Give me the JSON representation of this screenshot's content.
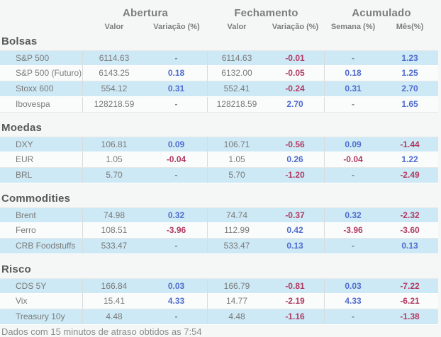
{
  "chart_data": {
    "type": "table",
    "column_groups": [
      {
        "label": "Abertura",
        "columns": [
          "Valor",
          "Variação (%)"
        ]
      },
      {
        "label": "Fechamento",
        "columns": [
          "Valor",
          "Variação (%)"
        ]
      },
      {
        "label": "Acumulado",
        "columns": [
          "Semana (%)",
          "Mês(%)"
        ]
      }
    ],
    "sections": [
      {
        "title": "Bolsas",
        "rows": [
          {
            "label": "S&P 500",
            "cells": [
              "6114.63",
              "-",
              "6114.63",
              "-0.01",
              "-",
              "1.23"
            ]
          },
          {
            "label": "S&P 500 (Futuro)",
            "cells": [
              "6143.25",
              "0.18",
              "6132.00",
              "-0.05",
              "0.18",
              "1.25"
            ]
          },
          {
            "label": "Stoxx 600",
            "cells": [
              "554.12",
              "0.31",
              "552.41",
              "-0.24",
              "0.31",
              "2.70"
            ]
          },
          {
            "label": "Ibovespa",
            "cells": [
              "128218.59",
              "-",
              "128218.59",
              "2.70",
              "-",
              "1.65"
            ]
          }
        ]
      },
      {
        "title": "Moedas",
        "rows": [
          {
            "label": "DXY",
            "cells": [
              "106.81",
              "0.09",
              "106.71",
              "-0.56",
              "0.09",
              "-1.44"
            ]
          },
          {
            "label": "EUR",
            "cells": [
              "1.05",
              "-0.04",
              "1.05",
              "0.26",
              "-0.04",
              "1.22"
            ]
          },
          {
            "label": "BRL",
            "cells": [
              "5.70",
              "-",
              "5.70",
              "-1.20",
              "-",
              "-2.49"
            ]
          }
        ]
      },
      {
        "title": "Commodities",
        "rows": [
          {
            "label": "Brent",
            "cells": [
              "74.98",
              "0.32",
              "74.74",
              "-0.37",
              "0.32",
              "-2.32"
            ]
          },
          {
            "label": "Ferro",
            "cells": [
              "108.51",
              "-3.96",
              "112.99",
              "0.42",
              "-3.96",
              "-3.60"
            ]
          },
          {
            "label": "CRB Foodstuffs",
            "cells": [
              "533.47",
              "-",
              "533.47",
              "0.13",
              "-",
              "0.13"
            ]
          }
        ]
      },
      {
        "title": "Risco",
        "rows": [
          {
            "label": "CDS 5Y",
            "cells": [
              "166.84",
              "0.03",
              "166.79",
              "-0.81",
              "0.03",
              "-7.22"
            ]
          },
          {
            "label": "Vix",
            "cells": [
              "15.41",
              "4.33",
              "14.77",
              "-2.19",
              "4.33",
              "-6.21"
            ]
          },
          {
            "label": "Treasury 10y",
            "cells": [
              "4.48",
              "-",
              "4.48",
              "-1.16",
              "-",
              "-1.38"
            ]
          }
        ]
      }
    ]
  },
  "footer": {
    "text": "Dados com 15 minutos de atraso obtidos as 7:54"
  },
  "colors": {
    "positive": "#4f6dce",
    "negative": "#b13a62",
    "dash": "#74808c",
    "rowHighlight": "#cde9f5",
    "rowPlain": "#fafbfb",
    "pageBg": "#f5f6f6"
  }
}
